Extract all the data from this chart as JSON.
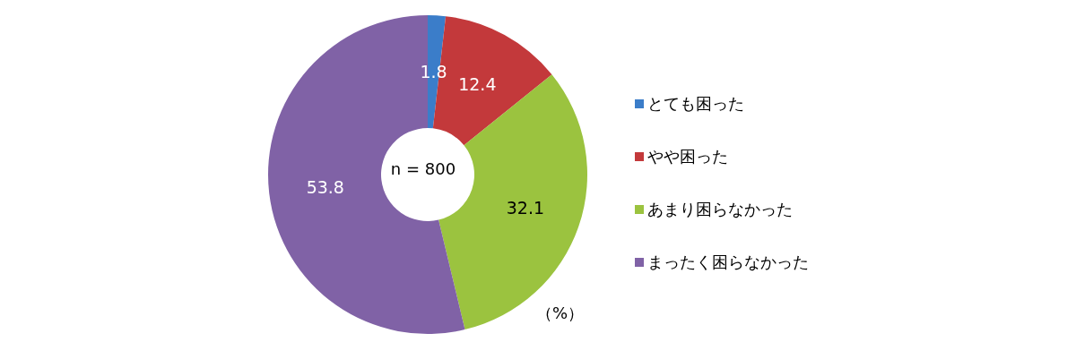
{
  "chart_data": {
    "type": "donut",
    "categories": [
      "とても困った",
      "やや困った",
      "あまり困らなかった",
      "まったく困らなかった"
    ],
    "values": [
      1.8,
      12.4,
      32.1,
      53.8
    ],
    "colors": [
      "#3b7dc9",
      "#c3393b",
      "#9bc33f",
      "#8062a6"
    ],
    "data_labels": true,
    "legend": "right",
    "annotations": [
      "n = 800",
      "（%）"
    ]
  }
}
